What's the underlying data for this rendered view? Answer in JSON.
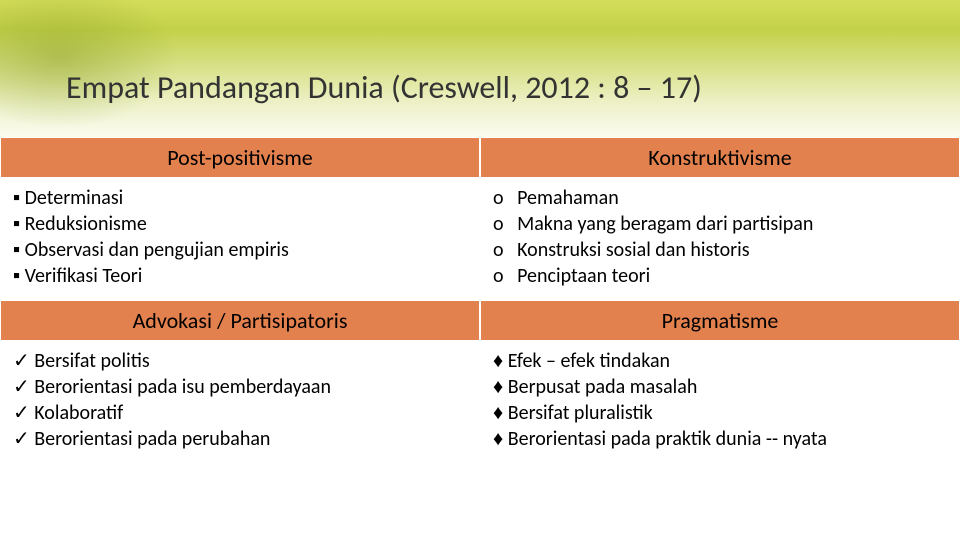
{
  "title": "Empat Pandangan Dunia (Creswell, 2012 : 8 – 17)",
  "q1": {
    "header": "Post-positivisme",
    "items": [
      "Determinasi",
      "Reduksionisme",
      "Observasi dan pengujian empiris",
      "Verifikasi Teori"
    ]
  },
  "q2": {
    "header": "Konstruktivisme",
    "items": [
      "Pemahaman",
      "Makna yang beragam dari partisipan",
      "Konstruksi sosial dan historis",
      "Penciptaan teori"
    ]
  },
  "q3": {
    "header": "Advokasi  / Partisipatoris",
    "items": [
      "Bersifat politis",
      "Berorientasi pada isu pemberdayaan",
      "Kolaboratif",
      "Berorientasi pada perubahan"
    ]
  },
  "q4": {
    "header": "Pragmatisme",
    "items": [
      "Efek – efek tindakan",
      "Berpusat pada masalah",
      "Bersifat pluralistik",
      "Berorientasi pada praktik dunia -- nyata"
    ]
  },
  "colors": {
    "header_bg": "#e2814d",
    "accent_green": "#c3d149"
  }
}
